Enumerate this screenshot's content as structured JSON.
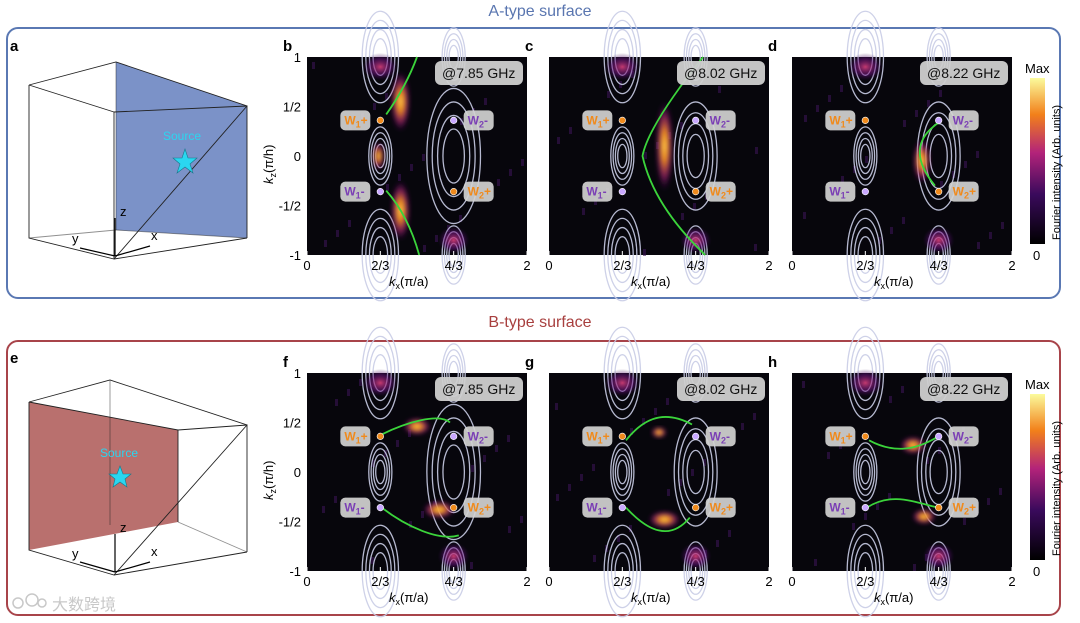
{
  "sections": {
    "a_title": "A-type surface",
    "b_title": "B-type surface"
  },
  "schematics": [
    {
      "label": "a",
      "source": "Source",
      "axis_z": "z",
      "axis_y": "y",
      "axis_x": "x",
      "surface_color": "#7b92c8"
    },
    {
      "label": "e",
      "source": "Source",
      "axis_z": "z",
      "axis_y": "y",
      "axis_x": "x",
      "surface_color": "#b9706e"
    }
  ],
  "axes": {
    "x_ticks": [
      "0",
      "2/3",
      "4/3",
      "2"
    ],
    "y_ticks": [
      "1",
      "1/2",
      "0",
      "-1/2",
      "-1"
    ],
    "xlabel_k": "k",
    "xlabel_sub": "x",
    "xlabel_unit": "(π/a)",
    "ylabel_k": "k",
    "ylabel_sub": "z",
    "ylabel_unit": "(π/h)"
  },
  "panels": [
    {
      "label": "b",
      "freq": "@7.85 GHz"
    },
    {
      "label": "c",
      "freq": "@8.02 GHz"
    },
    {
      "label": "d",
      "freq": "@8.22 GHz"
    },
    {
      "label": "f",
      "freq": "@7.85 GHz"
    },
    {
      "label": "g",
      "freq": "@8.02 GHz"
    },
    {
      "label": "h",
      "freq": "@8.22 GHz"
    }
  ],
  "weyl": {
    "w1": "W",
    "w2": "W",
    "sub1": "1",
    "sub2": "2",
    "plus": "+",
    "minus": "-"
  },
  "colorbar": {
    "max": "Max",
    "min": "0",
    "label": "Fourier intensity (Arb. units)"
  },
  "watermark": "大数跨境",
  "colors": {
    "a_frame": "#5a78b3",
    "b_frame": "#a8444a",
    "plot_bg": "#07060c",
    "contour": "#c9cde6",
    "arc": "#3bd43b",
    "hot": "#f08a1c",
    "source_star": "#2ad6f0"
  }
}
